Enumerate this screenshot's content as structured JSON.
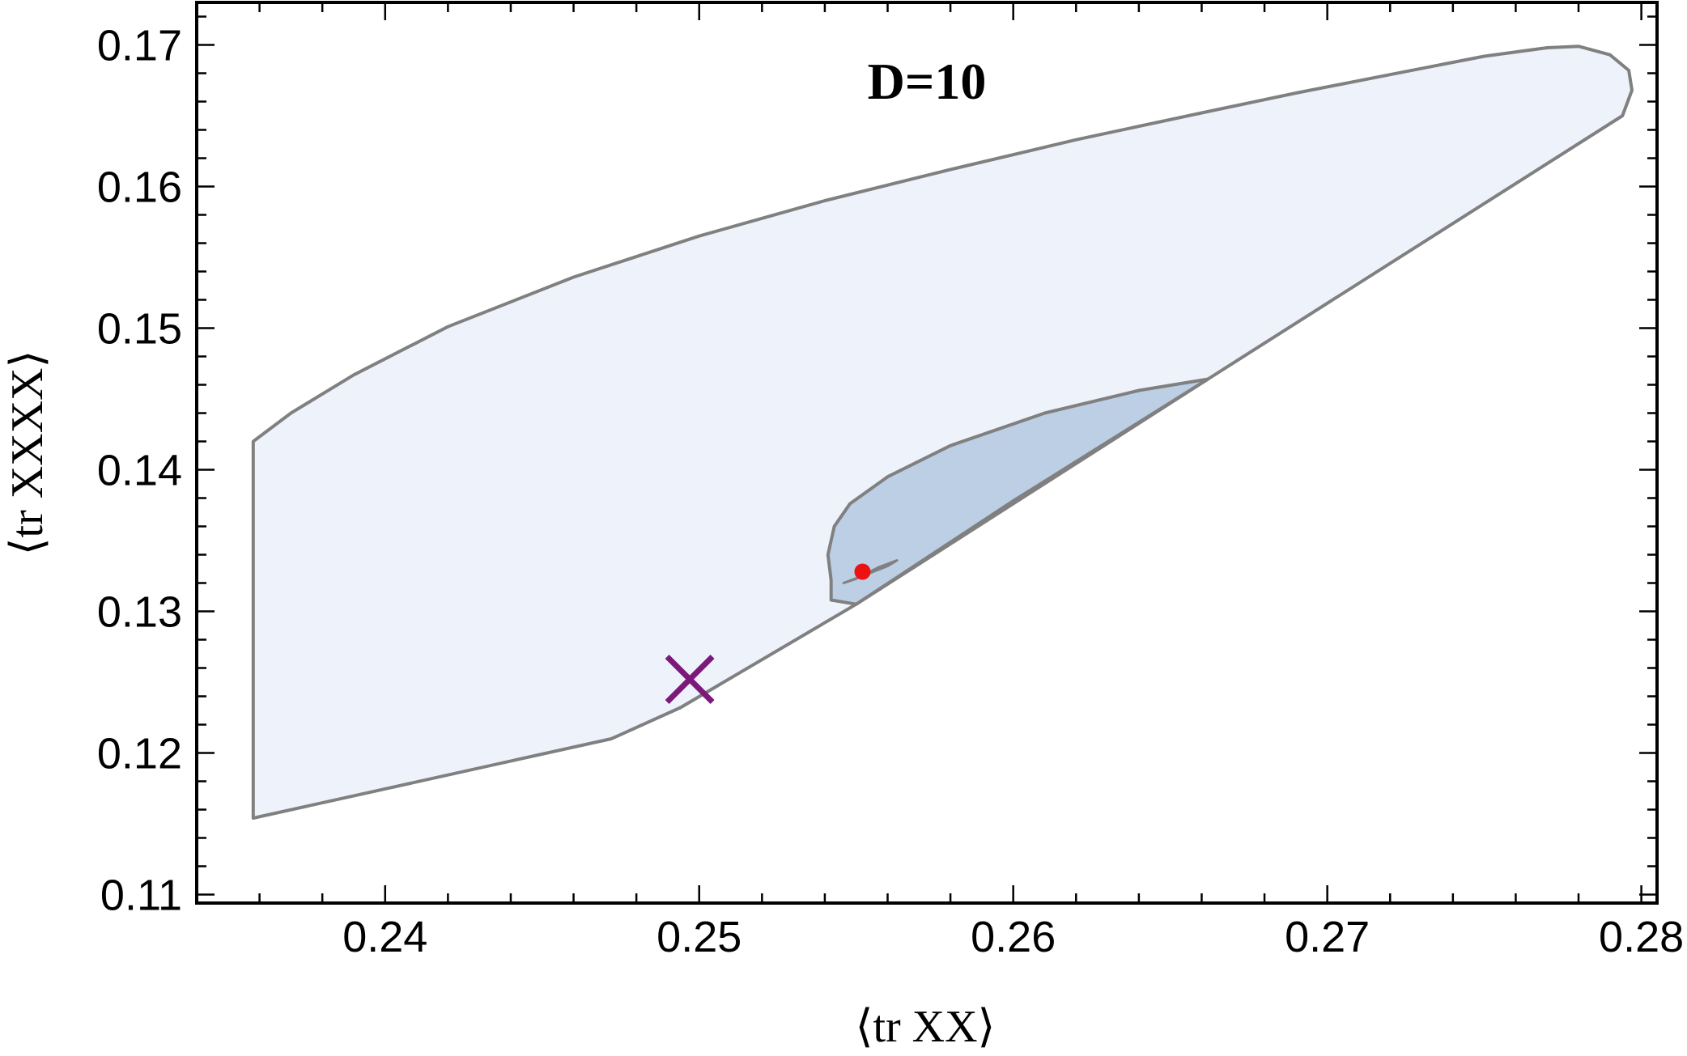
{
  "chart_data": {
    "type": "area",
    "title": "D=10",
    "xlabel": "⟨tr XX⟩",
    "ylabel": "⟨tr XXXX⟩",
    "xlim": [
      0.234,
      0.2805
    ],
    "ylim": [
      0.1094,
      0.173
    ],
    "xticks": {
      "major": [
        0.24,
        0.25,
        0.26,
        0.27,
        0.28
      ],
      "labels": [
        "0.24",
        "0.25",
        "0.26",
        "0.27",
        "0.28"
      ],
      "minor_step": 0.002
    },
    "yticks": {
      "major": [
        0.11,
        0.12,
        0.13,
        0.14,
        0.15,
        0.16,
        0.17
      ],
      "labels": [
        "0.11",
        "0.12",
        "0.13",
        "0.14",
        "0.15",
        "0.16",
        "0.17"
      ],
      "minor_step": 0.002
    },
    "grid": false,
    "regions": [
      {
        "id": "outer",
        "color": "#eef3fb",
        "stroke": "#808080",
        "points": [
          [
            0.2358,
            0.1154
          ],
          [
            0.2472,
            0.121
          ],
          [
            0.2494,
            0.1232
          ],
          [
            0.255,
            0.1305
          ],
          [
            0.2662,
            0.1464
          ],
          [
            0.2794,
            0.165
          ],
          [
            0.2797,
            0.1668
          ],
          [
            0.2796,
            0.1682
          ],
          [
            0.279,
            0.1693
          ],
          [
            0.278,
            0.1699
          ],
          [
            0.277,
            0.1698
          ],
          [
            0.275,
            0.1692
          ],
          [
            0.272,
            0.1679
          ],
          [
            0.269,
            0.1666
          ],
          [
            0.266,
            0.1652
          ],
          [
            0.262,
            0.1633
          ],
          [
            0.258,
            0.1612
          ],
          [
            0.254,
            0.159
          ],
          [
            0.25,
            0.1565
          ],
          [
            0.246,
            0.1536
          ],
          [
            0.242,
            0.1501
          ],
          [
            0.239,
            0.1467
          ],
          [
            0.237,
            0.144
          ],
          [
            0.2358,
            0.142
          ],
          [
            0.2358,
            0.1283
          ]
        ]
      },
      {
        "id": "inner",
        "color": "#bccfe5",
        "stroke": "#808080",
        "points": [
          [
            0.2542,
            0.1308
          ],
          [
            0.255,
            0.1305
          ],
          [
            0.26,
            0.1378
          ],
          [
            0.2662,
            0.1464
          ],
          [
            0.264,
            0.1456
          ],
          [
            0.261,
            0.144
          ],
          [
            0.258,
            0.1417
          ],
          [
            0.256,
            0.1395
          ],
          [
            0.2548,
            0.1376
          ],
          [
            0.2543,
            0.136
          ],
          [
            0.2541,
            0.134
          ],
          [
            0.2542,
            0.1322
          ]
        ]
      },
      {
        "id": "core",
        "color": "#808080",
        "stroke": "#808080",
        "points": [
          [
            0.2546,
            0.132
          ],
          [
            0.2552,
            0.1325
          ],
          [
            0.256,
            0.1332
          ],
          [
            0.2563,
            0.1336
          ],
          [
            0.2557,
            0.1331
          ],
          [
            0.255,
            0.1323
          ]
        ]
      }
    ],
    "markers": [
      {
        "id": "cross",
        "shape": "x",
        "color": "#7b1a7b",
        "x": 0.2497,
        "y": 0.1252
      },
      {
        "id": "dot",
        "shape": "circle",
        "color": "#ee1111",
        "x": 0.2552,
        "y": 0.1328
      }
    ]
  }
}
